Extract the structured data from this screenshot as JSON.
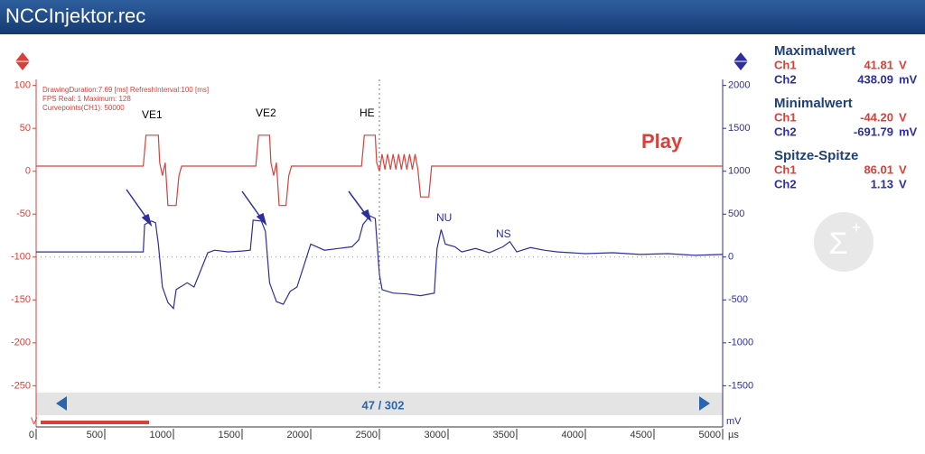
{
  "window_title": "NCCInjektor.rec",
  "chart_data": {
    "type": "line",
    "info": [
      "DrawingDuration:7.69 [ms]  RefreshInterval:100 [ms]",
      "FPS Real: 1  Maximum: 128",
      "Curvepoints(CH1): 50000"
    ],
    "annotations": [
      "VE1",
      "VE2",
      "HE",
      "NU",
      "NS"
    ],
    "status": "Play",
    "position": "47 / 302",
    "xlabel": "µs",
    "ylabel": "V",
    "y2label": "mV",
    "xlim": [
      0,
      5000
    ],
    "xticks": [
      0,
      500,
      1000,
      1500,
      2000,
      2500,
      3000,
      3500,
      4000,
      4500,
      5000
    ],
    "ylim": [
      -298,
      107
    ],
    "yticks": [
      100,
      50,
      0,
      -50,
      -100,
      -150,
      -200,
      -250
    ],
    "y2lim": [
      -1980,
      2070
    ],
    "y2ticks": [
      2000,
      1500,
      1000,
      500,
      0,
      -500,
      -1000,
      -1500
    ],
    "series": [
      {
        "color": "#d9403a",
        "axis": "y",
        "x": [
          0,
          780,
          800,
          890,
          900,
          920,
          940,
          960,
          1020,
          1040,
          1060,
          1600,
          1620,
          1700,
          1710,
          1730,
          1750,
          1770,
          1820,
          1840,
          1860,
          2370,
          2390,
          2470,
          2480,
          2500,
          2520,
          2540,
          2560,
          2580,
          2600,
          2620,
          2640,
          2660,
          2680,
          2700,
          2720,
          2740,
          2760,
          2780,
          2800,
          2860,
          2880,
          5000
        ],
        "values": [
          6,
          6,
          42,
          42,
          10,
          -5,
          10,
          -40,
          -40,
          -5,
          6,
          6,
          42,
          42,
          10,
          -5,
          10,
          -40,
          -40,
          -5,
          6,
          6,
          42,
          42,
          10,
          0,
          20,
          2,
          20,
          2,
          20,
          2,
          20,
          2,
          20,
          2,
          20,
          2,
          20,
          2,
          -30,
          -30,
          6,
          6
        ]
      },
      {
        "color": "#2e2e9e",
        "axis": "y2",
        "x": [
          0,
          780,
          790,
          840,
          870,
          890,
          920,
          960,
          1000,
          1020,
          1100,
          1150,
          1200,
          1250,
          1300,
          1400,
          1500,
          1560,
          1580,
          1640,
          1670,
          1700,
          1750,
          1800,
          1850,
          1900,
          1950,
          2000,
          2100,
          2200,
          2300,
          2350,
          2380,
          2430,
          2470,
          2500,
          2520,
          2600,
          2700,
          2800,
          2900,
          2920,
          2950,
          2980,
          3050,
          3100,
          3200,
          3300,
          3400,
          3450,
          3500,
          3600,
          3700,
          3800,
          4000,
          4200,
          4400,
          4600,
          4800,
          5000
        ],
        "values": [
          60,
          60,
          380,
          420,
          400,
          150,
          -350,
          -530,
          -600,
          -380,
          -300,
          -350,
          -150,
          50,
          80,
          60,
          70,
          80,
          430,
          420,
          300,
          -300,
          -520,
          -550,
          -400,
          -350,
          -100,
          150,
          80,
          100,
          120,
          200,
          380,
          480,
          450,
          -200,
          -380,
          -420,
          -430,
          -450,
          -420,
          100,
          320,
          150,
          120,
          60,
          100,
          50,
          120,
          180,
          60,
          110,
          80,
          60,
          40,
          50,
          30,
          40,
          20,
          30
        ]
      }
    ]
  },
  "panel": [
    {
      "title": "Maximalwert",
      "rows": [
        [
          "Ch1",
          "41.81",
          "V"
        ],
        [
          "Ch2",
          "438.09",
          "mV"
        ]
      ]
    },
    {
      "title": "Minimalwert",
      "rows": [
        [
          "Ch1",
          "-44.20",
          "V"
        ],
        [
          "Ch2",
          "-691.79",
          "mV"
        ]
      ]
    },
    {
      "title": "Spitze-Spitze",
      "rows": [
        [
          "Ch1",
          "86.01",
          "V"
        ],
        [
          "Ch2",
          "1.13",
          "V"
        ]
      ]
    }
  ]
}
